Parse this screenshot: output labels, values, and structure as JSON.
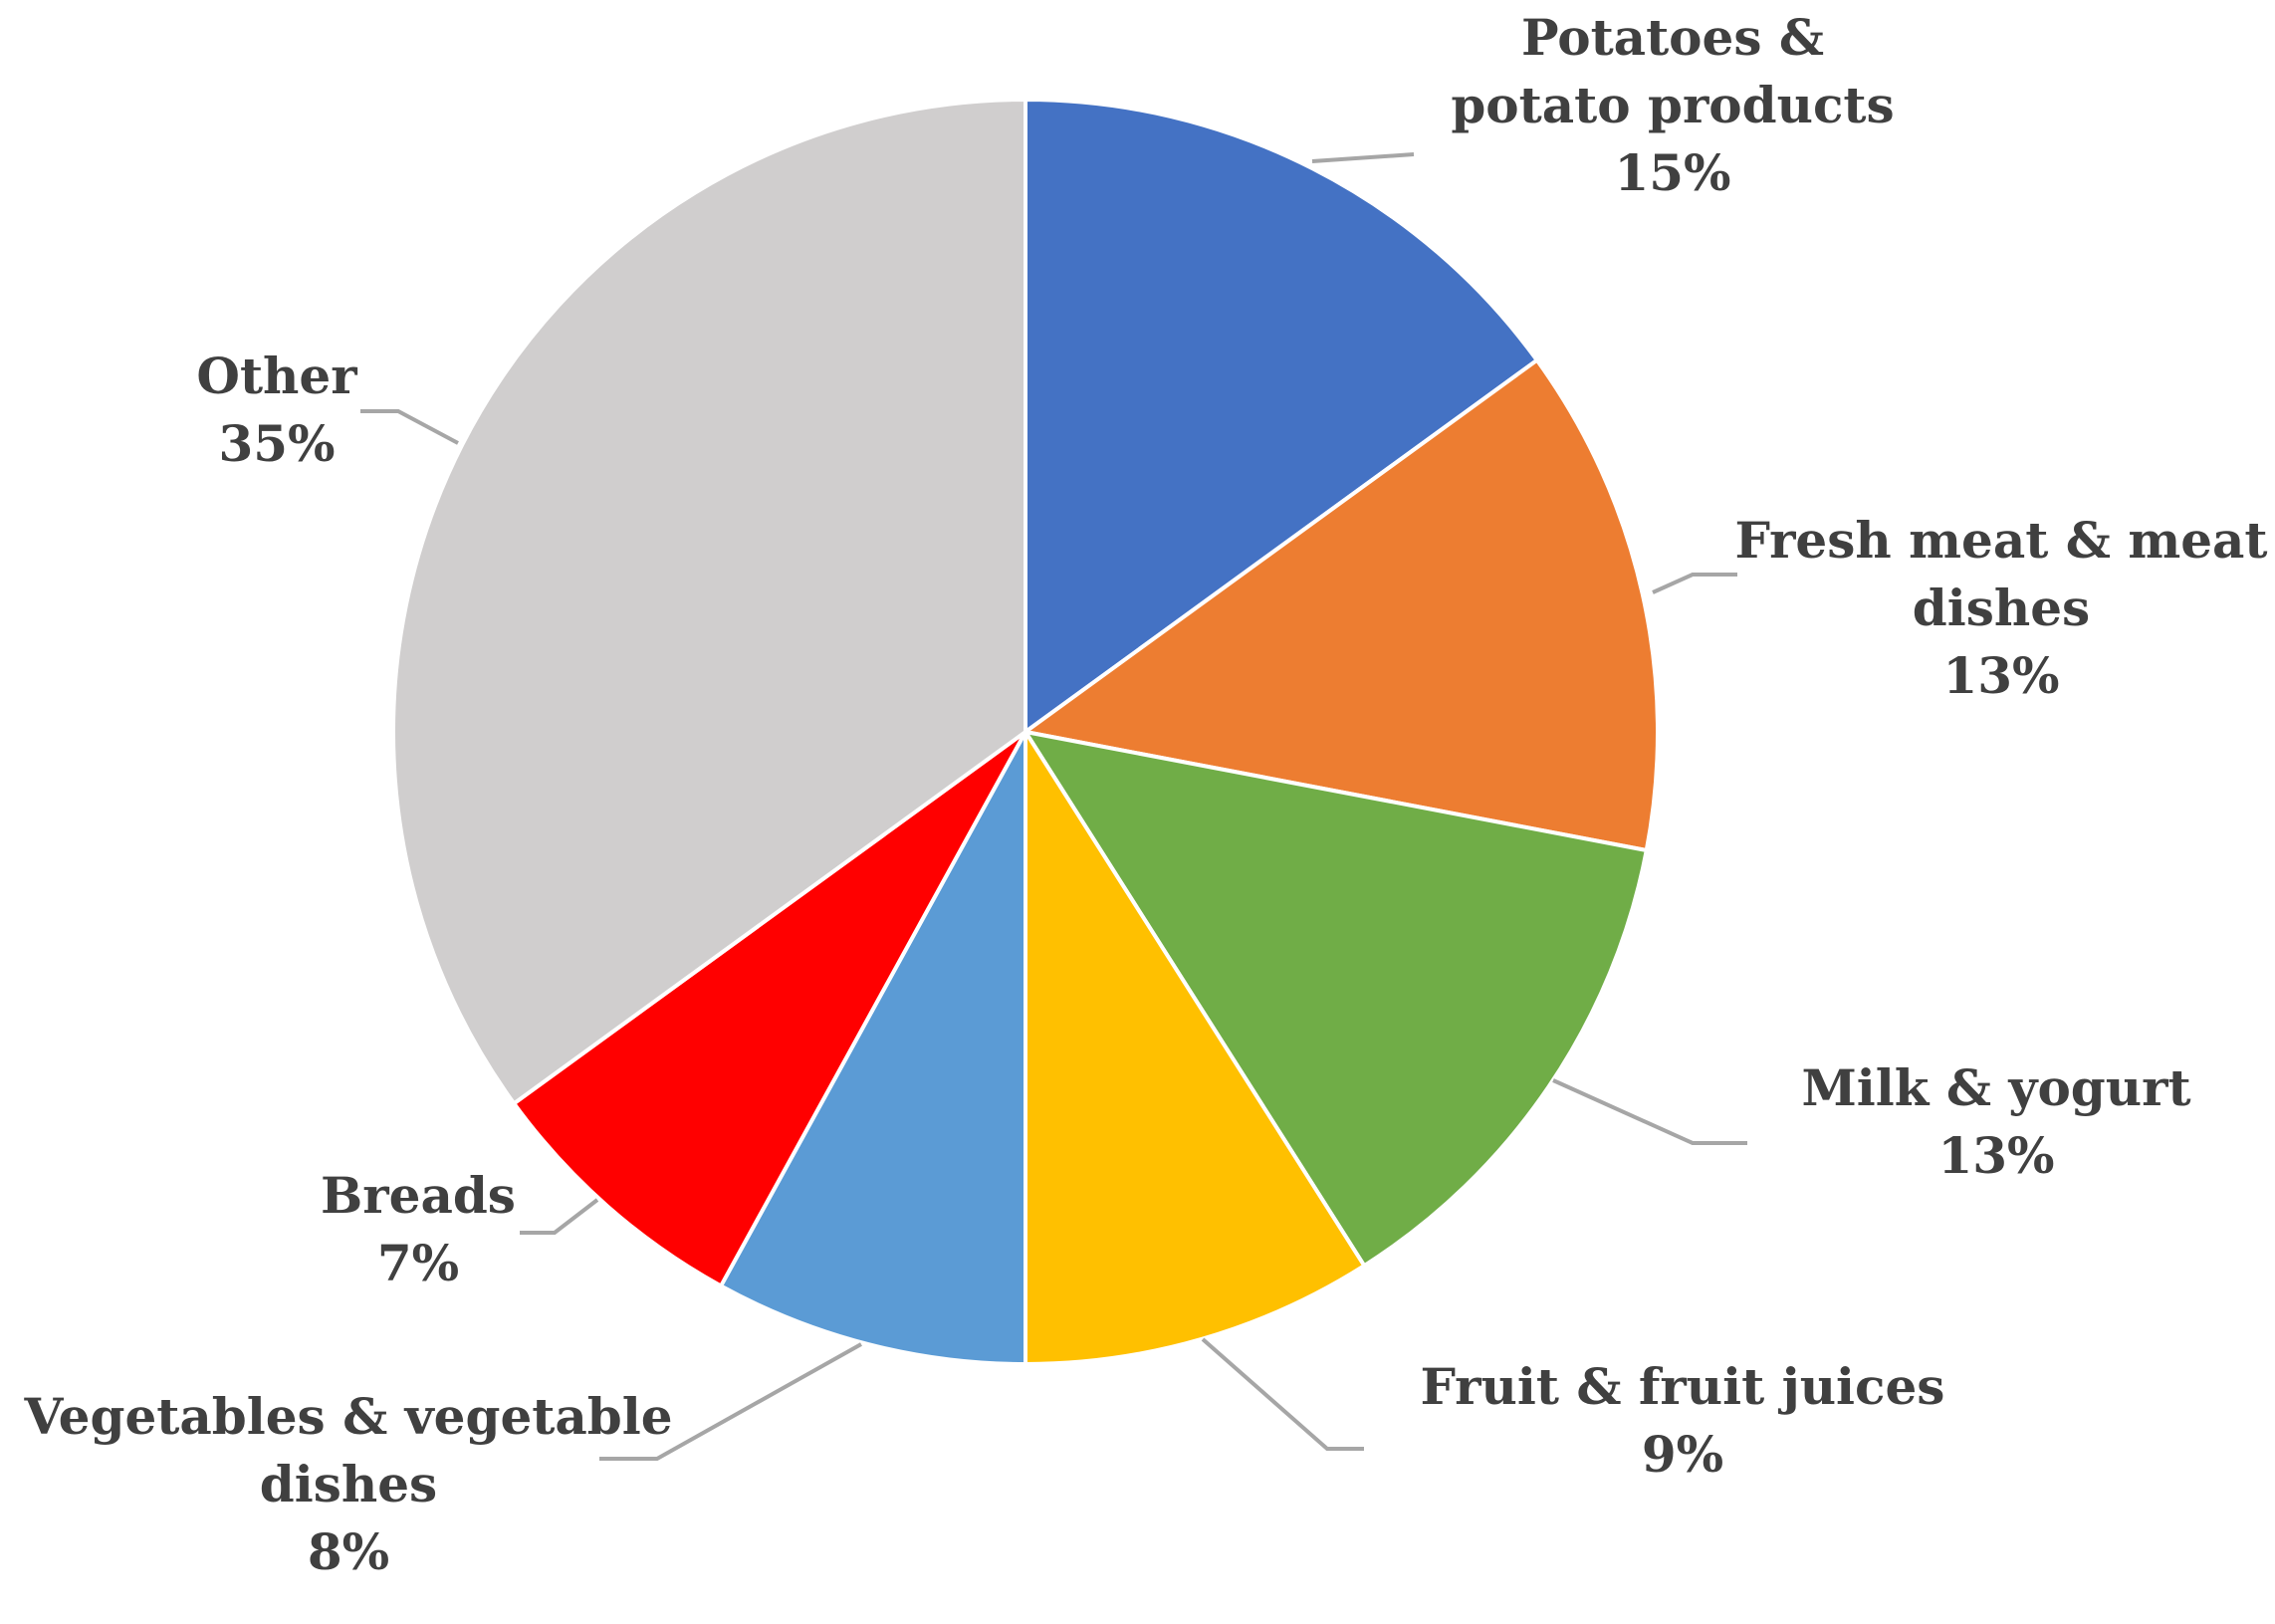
{
  "chart_data": {
    "type": "pie",
    "title": "",
    "start_angle_deg": 0,
    "direction": "clockwise",
    "slices": [
      {
        "label": [
          "Potatoes &",
          "potato products"
        ],
        "percent_label": "15%",
        "value": 15,
        "color": "#4472c4"
      },
      {
        "label": [
          "Fresh meat & meat",
          "dishes"
        ],
        "percent_label": "13%",
        "value": 13,
        "color": "#ed7d31"
      },
      {
        "label": [
          "Milk & yogurt"
        ],
        "percent_label": "13%",
        "value": 13,
        "color": "#70ad47"
      },
      {
        "label": [
          "Fruit & fruit juices"
        ],
        "percent_label": "9%",
        "value": 9,
        "color": "#ffc000"
      },
      {
        "label": [
          "Vegetables & vegetable",
          "dishes"
        ],
        "percent_label": "8%",
        "value": 8,
        "color": "#5b9bd5"
      },
      {
        "label": [
          "Breads"
        ],
        "percent_label": "7%",
        "value": 7,
        "color": "#ff0000"
      },
      {
        "label": [
          "Other"
        ],
        "percent_label": "35%",
        "value": 35,
        "color": "#d0cece"
      }
    ],
    "legend": "none"
  }
}
